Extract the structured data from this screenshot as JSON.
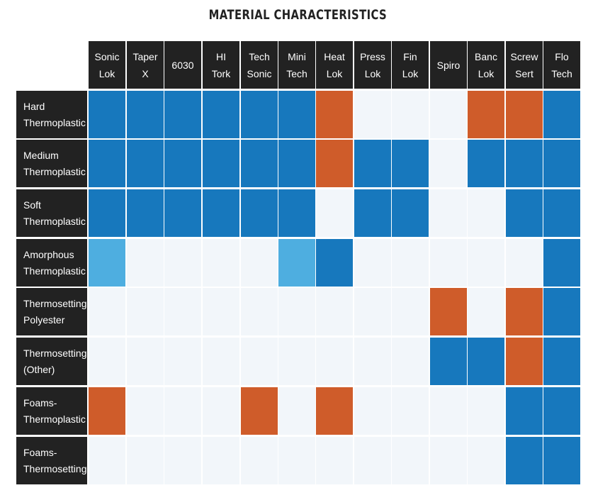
{
  "chart_data": {
    "type": "heatmap",
    "title": "MATERIAL CHARACTERISTICS",
    "columns": [
      "Sonic\nLok",
      "Taper\nX",
      "6030",
      "HI\nTork",
      "Tech\nSonic",
      "Mini\nTech",
      "Heat\nLok",
      "Press\nLok",
      "Fin\nLok",
      "Spiro",
      "Banc\nLok",
      "Screw\nSert",
      "Flo\nTech"
    ],
    "rows": [
      "Hard\nThermoplastic",
      "Medium\nThermoplastic",
      "Soft\nThermoplastic",
      "Amorphous\nThermoplastic",
      "Thermosetting\nPolyester",
      "Thermosetting\n(Other)",
      "Foams-\nThermoplastic",
      "Foams-\nThermosetting"
    ],
    "value_colors": {
      "B": "#1778bd",
      "L": "#4eaee0",
      "O": "#cf5c2a",
      "E": "#f2f6fa"
    },
    "header_color": "#222222",
    "values": [
      [
        "B",
        "B",
        "B",
        "B",
        "B",
        "B",
        "O",
        "E",
        "E",
        "E",
        "O",
        "O",
        "B"
      ],
      [
        "B",
        "B",
        "B",
        "B",
        "B",
        "B",
        "O",
        "B",
        "B",
        "E",
        "B",
        "B",
        "B"
      ],
      [
        "B",
        "B",
        "B",
        "B",
        "B",
        "B",
        "E",
        "B",
        "B",
        "E",
        "E",
        "B",
        "B"
      ],
      [
        "L",
        "E",
        "E",
        "E",
        "E",
        "L",
        "B",
        "E",
        "E",
        "E",
        "E",
        "E",
        "B"
      ],
      [
        "E",
        "E",
        "E",
        "E",
        "E",
        "E",
        "E",
        "E",
        "E",
        "O",
        "E",
        "O",
        "B"
      ],
      [
        "E",
        "E",
        "E",
        "E",
        "E",
        "E",
        "E",
        "E",
        "E",
        "B",
        "B",
        "O",
        "B"
      ],
      [
        "O",
        "E",
        "E",
        "E",
        "O",
        "E",
        "O",
        "E",
        "E",
        "E",
        "E",
        "B",
        "B"
      ],
      [
        "E",
        "E",
        "E",
        "E",
        "E",
        "E",
        "E",
        "E",
        "E",
        "E",
        "E",
        "B",
        "B"
      ]
    ]
  }
}
